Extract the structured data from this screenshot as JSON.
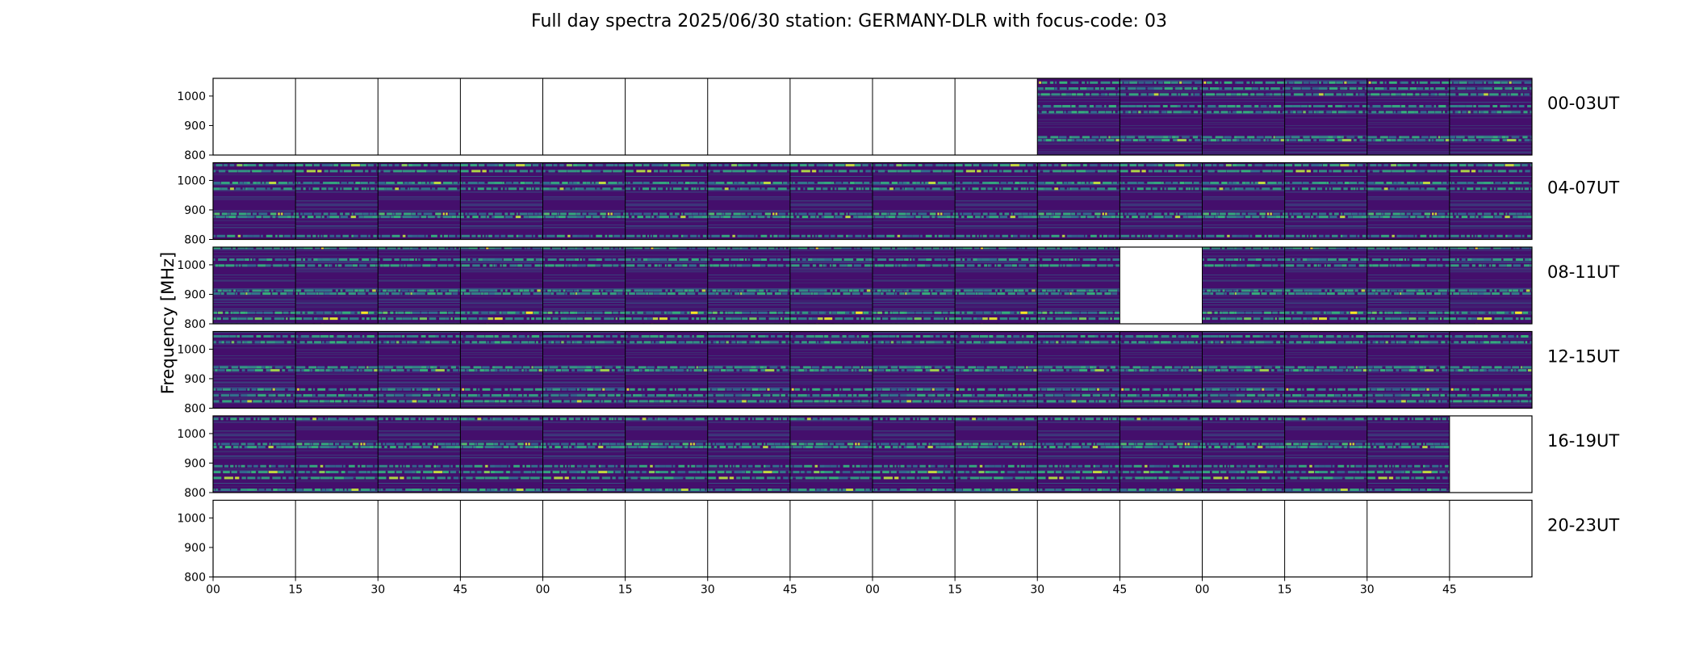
{
  "chart_data": {
    "type": "heatmap",
    "title": "Full day spectra 2025/06/30 station: GERMANY-DLR with focus-code: 03",
    "ylabel": "Frequency [MHz]",
    "xlabel": "",
    "ylim": [
      800,
      1060
    ],
    "y_ticks": [
      "800",
      "900",
      "1000"
    ],
    "x_ticks": [
      "00",
      "15",
      "30",
      "45",
      "00",
      "15",
      "30",
      "45",
      "00",
      "15",
      "30",
      "45",
      "00",
      "15",
      "30",
      "45"
    ],
    "colormap": [
      "#440154",
      "#31688e",
      "#35b779",
      "#fde725"
    ],
    "background_color": "#440f6c",
    "rows": [
      {
        "label": "00-03UT",
        "panels": [
          0,
          0,
          0,
          0,
          0,
          0,
          0,
          0,
          0,
          0,
          1,
          1,
          1,
          1,
          1,
          1
        ]
      },
      {
        "label": "04-07UT",
        "panels": [
          1,
          1,
          1,
          1,
          1,
          1,
          1,
          1,
          1,
          1,
          1,
          1,
          1,
          1,
          1,
          1
        ]
      },
      {
        "label": "08-11UT",
        "panels": [
          1,
          1,
          1,
          1,
          1,
          1,
          1,
          1,
          1,
          1,
          1,
          0,
          1,
          1,
          1,
          1
        ]
      },
      {
        "label": "12-15UT",
        "panels": [
          1,
          1,
          1,
          1,
          1,
          1,
          1,
          1,
          1,
          1,
          1,
          1,
          1,
          1,
          1,
          1
        ]
      },
      {
        "label": "16-19UT",
        "panels": [
          1,
          1,
          1,
          1,
          1,
          1,
          1,
          1,
          1,
          1,
          1,
          1,
          1,
          1,
          1,
          0
        ]
      },
      {
        "label": "20-23UT",
        "panels": [
          0,
          0,
          0,
          0,
          0,
          0,
          0,
          0,
          0,
          0,
          0,
          0,
          0,
          0,
          0,
          0
        ]
      }
    ],
    "bright_bands_mhz": [
      1040,
      1020,
      1000,
      960,
      940,
      855,
      845
    ],
    "grid": false,
    "legend": "none"
  }
}
